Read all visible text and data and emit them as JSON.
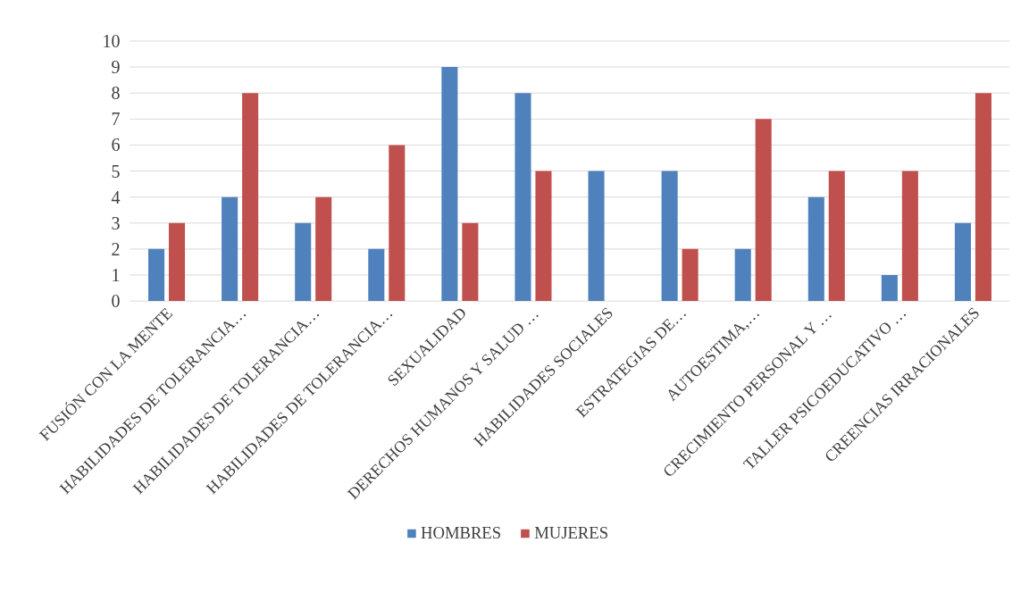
{
  "chart_data": {
    "type": "bar",
    "categories": [
      "FUSIÓN CON LA MENTE",
      "HABILIDADES DE TOLERANCIA…",
      "HABILIDADES DE TOLERANCIA…",
      "HABILIDADES DE TOLERANCIA…",
      "SEXUALIDAD",
      "DERECHOS HUMANOS Y SALUD …",
      "HABILIDADES SOCIALES",
      "ESTRATEGIAS DE…",
      "AUTOESTIMA,…",
      "CRECIMIENTO PERSONAL Y …",
      "TALLER PSICOEDUCATIVO …",
      "CREENCIAS IRRACIONALES"
    ],
    "series": [
      {
        "name": "HOMBRES",
        "color": "#4f81bd",
        "values": [
          2,
          4,
          3,
          2,
          9,
          8,
          5,
          5,
          2,
          4,
          1,
          3
        ]
      },
      {
        "name": "MUJERES",
        "color": "#c0504d",
        "values": [
          3,
          8,
          4,
          6,
          3,
          5,
          null,
          2,
          7,
          5,
          5,
          8
        ]
      }
    ],
    "ylim": [
      0,
      10
    ],
    "yticks": [
      0,
      1,
      2,
      3,
      4,
      5,
      6,
      7,
      8,
      9,
      10
    ],
    "grid": "y",
    "legend": "bottom"
  }
}
